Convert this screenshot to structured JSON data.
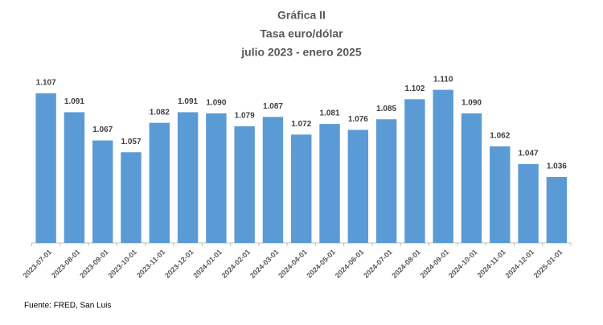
{
  "chart_data": {
    "type": "bar",
    "title": [
      "Gráfica II",
      "Tasa euro/dólar",
      "julio 2023 - enero 2025"
    ],
    "categories": [
      "2023-07-01",
      "2023-08-01",
      "2023-09-01",
      "2023-10-01",
      "2023-11-01",
      "2023-12-01",
      "2024-01-01",
      "2024-02-01",
      "2024-03-01",
      "2024-04-01",
      "2024-05-01",
      "2024-06-01",
      "2024-07-01",
      "2024-08-01",
      "2024-09-01",
      "2024-10-01",
      "2024-11-01",
      "2024-12-01",
      "2025-01-01"
    ],
    "values": [
      1.107,
      1.091,
      1.067,
      1.057,
      1.082,
      1.091,
      1.09,
      1.079,
      1.087,
      1.072,
      1.081,
      1.076,
      1.085,
      1.102,
      1.11,
      1.09,
      1.062,
      1.047,
      1.036
    ],
    "value_labels": [
      "1.107",
      "1.091",
      "1.067",
      "1.057",
      "1.082",
      "1.091",
      "1.090",
      "1.079",
      "1.087",
      "1.072",
      "1.081",
      "1.076",
      "1.085",
      "1.102",
      "1.110",
      "1.090",
      "1.062",
      "1.047",
      "1.036"
    ],
    "color": "#5b9bd5",
    "ylim": [
      0.98,
      1.12
    ],
    "source": "Fuente: FRED, San Luis"
  }
}
